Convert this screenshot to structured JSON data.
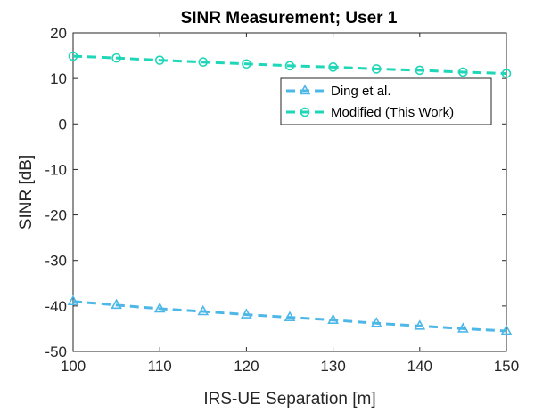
{
  "chart_data": {
    "type": "line",
    "title": "SINR Measurement; User 1",
    "xlabel": "IRS-UE Separation [m]",
    "ylabel": "SINR [dB]",
    "xlim": [
      100,
      150
    ],
    "ylim": [
      -50,
      20
    ],
    "xticks": [
      100,
      110,
      120,
      130,
      140,
      150
    ],
    "yticks": [
      -50,
      -40,
      -30,
      -20,
      -10,
      0,
      10,
      20
    ],
    "x": [
      100,
      105,
      110,
      115,
      120,
      125,
      130,
      135,
      140,
      145,
      150
    ],
    "series": [
      {
        "name": "Ding et al.",
        "marker": "triangle",
        "color": "#4db8e8",
        "values": [
          -39.0,
          -39.8,
          -40.6,
          -41.2,
          -41.9,
          -42.5,
          -43.1,
          -43.8,
          -44.4,
          -45.0,
          -45.5
        ]
      },
      {
        "name": "Modified (This Work)",
        "marker": "circle",
        "color": "#1ed7b8",
        "values": [
          14.9,
          14.5,
          14.0,
          13.6,
          13.2,
          12.8,
          12.5,
          12.1,
          11.8,
          11.4,
          11.1
        ]
      }
    ],
    "legend_position": "top-right",
    "grid": false
  }
}
